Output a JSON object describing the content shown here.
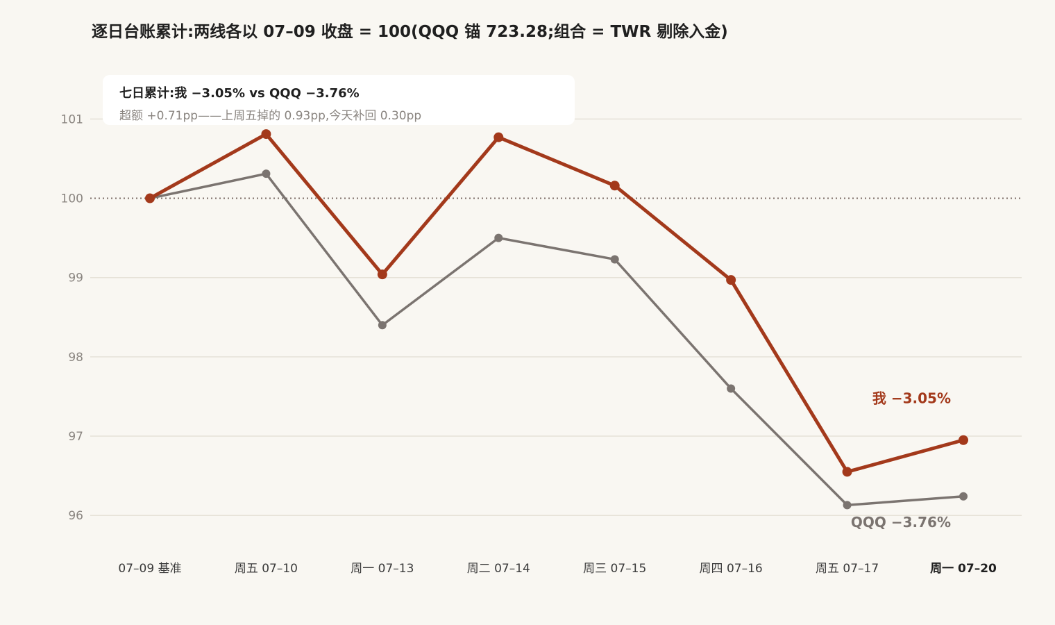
{
  "chart_data": {
    "type": "line",
    "title": "逐日台账累计:两线各以 07–09 收盘 = 100(QQQ 锚 723.28;组合 = TWR 剔除入金)",
    "categories": [
      "07–09 基准",
      "周五 07–10",
      "周一 07–13",
      "周二 07–14",
      "周三 07–15",
      "周四 07–16",
      "周五 07–17",
      "周一 07–20"
    ],
    "y_ticks": [
      "96",
      "97",
      "98",
      "99",
      "100",
      "101"
    ],
    "ylim": [
      95.6,
      101.55
    ],
    "baseline": 100,
    "grid": true,
    "series": [
      {
        "key": "me",
        "values": [
          100,
          100.81,
          99.04,
          100.77,
          100.16,
          98.97,
          96.55,
          96.95
        ],
        "color": "#a3391b"
      },
      {
        "key": "qqq",
        "values": [
          100,
          100.31,
          98.4,
          99.5,
          99.23,
          97.6,
          96.13,
          96.24
        ],
        "color": "#7b7470"
      }
    ],
    "end_labels": {
      "me": "我 −3.05%",
      "qqq": "QQQ −3.76%"
    },
    "summary": {
      "line1": "七日累计:我 −3.05% vs QQQ −3.76%",
      "line2": "超额 +0.71pp——上周五掉的 0.93pp,今天补回 0.30pp"
    }
  }
}
